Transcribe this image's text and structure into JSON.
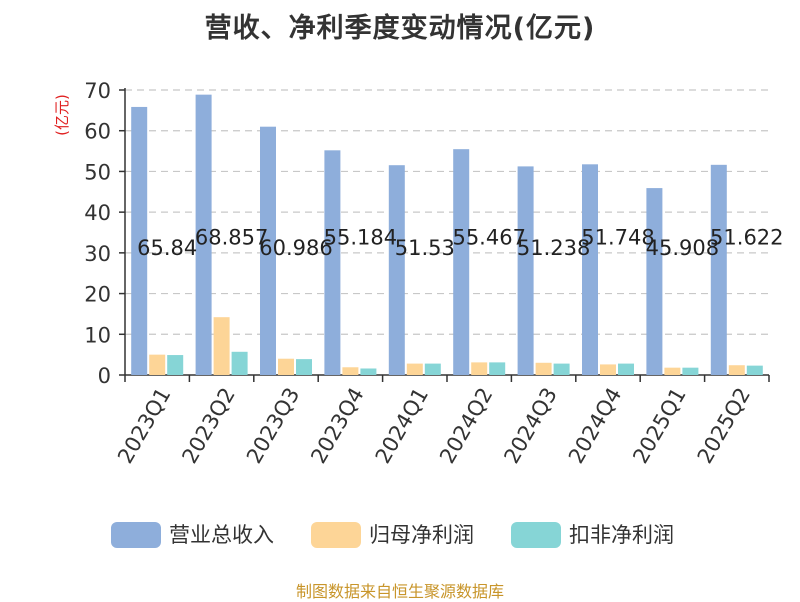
{
  "chart_data": {
    "type": "bar",
    "title": "营收、净利季度变动情况(亿元)",
    "ylabel": "(亿元)",
    "xlabel": "",
    "ylim": [
      0,
      70
    ],
    "yticks": [
      0,
      10,
      20,
      30,
      40,
      50,
      60,
      70
    ],
    "grid": true,
    "legend_position": "bottom",
    "categories": [
      "2023Q1",
      "2023Q2",
      "2023Q3",
      "2023Q4",
      "2024Q1",
      "2024Q2",
      "2024Q3",
      "2024Q4",
      "2025Q1",
      "2025Q2"
    ],
    "series": [
      {
        "name": "营业总收入",
        "color": "#8eaedb",
        "values": [
          65.84,
          68.857,
          60.986,
          55.184,
          51.53,
          55.467,
          51.238,
          51.748,
          45.908,
          51.622
        ],
        "labels": [
          "65.84",
          "68.857",
          "60.986",
          "55.184",
          "51.53",
          "55.467",
          "51.238",
          "51.748",
          "45.908",
          "51.622"
        ]
      },
      {
        "name": "归母净利润",
        "color": "#fdd597",
        "values": [
          5.0,
          14.2,
          4.0,
          1.9,
          2.8,
          3.1,
          3.0,
          2.6,
          1.8,
          2.4
        ]
      },
      {
        "name": "扣非净利润",
        "color": "#86d5d6",
        "values": [
          4.9,
          5.7,
          3.9,
          1.6,
          2.8,
          3.1,
          2.8,
          2.8,
          1.8,
          2.3
        ]
      }
    ]
  },
  "source_note": "制图数据来自恒生聚源数据库"
}
